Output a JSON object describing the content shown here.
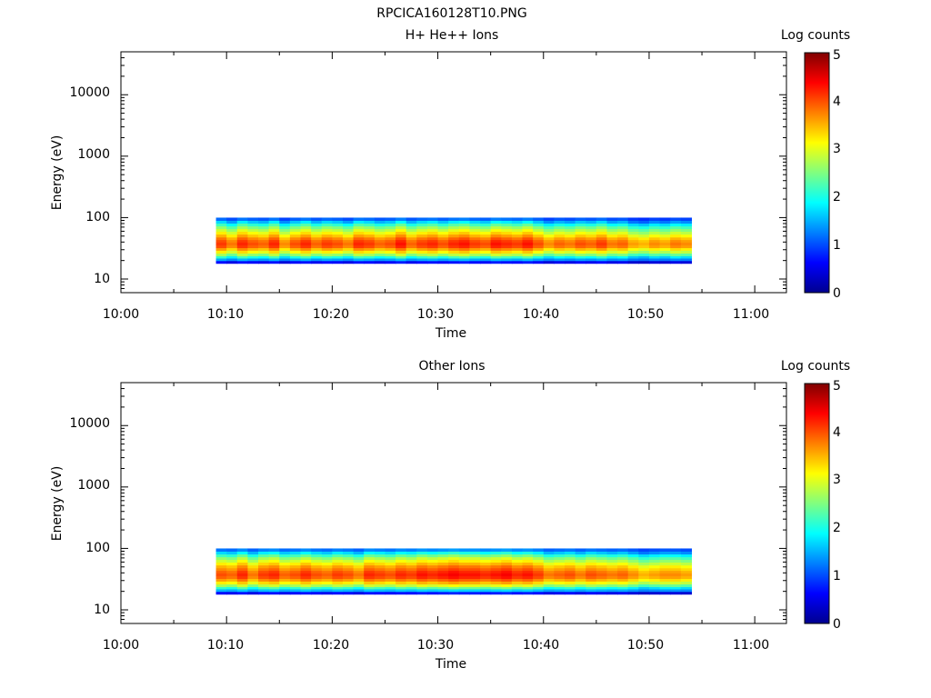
{
  "figure_title": "RPCICA160128T10.PNG",
  "chart_data": [
    {
      "type": "heatmap",
      "title": "H+ He++ Ions",
      "xlabel": "Time",
      "ylabel": "Energy (eV)",
      "y_scale": "log",
      "xlim": [
        "10:00",
        "11:03"
      ],
      "ylim": [
        6,
        50000
      ],
      "x_ticks": [
        "10:00",
        "10:10",
        "10:20",
        "10:30",
        "10:40",
        "10:50",
        "11:00"
      ],
      "y_ticks": [
        "10",
        "100",
        "1000",
        "10000"
      ],
      "colorbar": {
        "label": "Log counts",
        "range": [
          0,
          5
        ],
        "ticks": [
          "0",
          "1",
          "2",
          "3",
          "4",
          "5"
        ],
        "colormap": "jet"
      },
      "time_bins": [
        "10:09",
        "10:10",
        "10:11",
        "10:12",
        "10:13",
        "10:14",
        "10:15",
        "10:16",
        "10:17",
        "10:18",
        "10:19",
        "10:20",
        "10:21",
        "10:22",
        "10:23",
        "10:24",
        "10:25",
        "10:26",
        "10:27",
        "10:28",
        "10:29",
        "10:30",
        "10:31",
        "10:32",
        "10:33",
        "10:34",
        "10:35",
        "10:36",
        "10:37",
        "10:38",
        "10:39",
        "10:40",
        "10:41",
        "10:42",
        "10:43",
        "10:44",
        "10:45",
        "10:46",
        "10:47",
        "10:48",
        "10:49",
        "10:50",
        "10:51",
        "10:52",
        "10:53"
      ],
      "energy_bins_eV": [
        19,
        21,
        23,
        25,
        28,
        31,
        34,
        38,
        42,
        46,
        51,
        57,
        63,
        70,
        77,
        86,
        95
      ],
      "log_counts_profile": [
        0.6,
        1.4,
        2.0,
        2.6,
        3.1,
        3.5,
        3.9,
        4.0,
        3.9,
        3.7,
        3.4,
        3.1,
        2.8,
        2.5,
        2.1,
        1.6,
        1.1
      ],
      "time_modulation": [
        0.1,
        -0.2,
        0.2,
        0.0,
        -0.1,
        0.2,
        -0.3,
        0.0,
        0.2,
        -0.1,
        0.1,
        0.0,
        -0.2,
        0.2,
        0.1,
        -0.1,
        0.0,
        0.3,
        -0.1,
        0.1,
        0.2,
        0.0,
        0.2,
        0.3,
        0.1,
        0.0,
        0.3,
        0.2,
        0.1,
        0.3,
        0.0,
        -0.3,
        -0.1,
        -0.2,
        0.0,
        -0.1,
        0.1,
        -0.2,
        -0.1,
        -0.4,
        -0.5,
        -0.3,
        -0.4,
        -0.2,
        -0.3
      ]
    },
    {
      "type": "heatmap",
      "title": "Other Ions",
      "xlabel": "Time",
      "ylabel": "Energy (eV)",
      "y_scale": "log",
      "xlim": [
        "10:00",
        "11:03"
      ],
      "ylim": [
        6,
        50000
      ],
      "x_ticks": [
        "10:00",
        "10:10",
        "10:20",
        "10:30",
        "10:40",
        "10:50",
        "11:00"
      ],
      "y_ticks": [
        "10",
        "100",
        "1000",
        "10000"
      ],
      "colorbar": {
        "label": "Log counts",
        "range": [
          0,
          5
        ],
        "ticks": [
          "0",
          "1",
          "2",
          "3",
          "4",
          "5"
        ],
        "colormap": "jet"
      },
      "time_bins": [
        "10:09",
        "10:10",
        "10:11",
        "10:12",
        "10:13",
        "10:14",
        "10:15",
        "10:16",
        "10:17",
        "10:18",
        "10:19",
        "10:20",
        "10:21",
        "10:22",
        "10:23",
        "10:24",
        "10:25",
        "10:26",
        "10:27",
        "10:28",
        "10:29",
        "10:30",
        "10:31",
        "10:32",
        "10:33",
        "10:34",
        "10:35",
        "10:36",
        "10:37",
        "10:38",
        "10:39",
        "10:40",
        "10:41",
        "10:42",
        "10:43",
        "10:44",
        "10:45",
        "10:46",
        "10:47",
        "10:48",
        "10:49",
        "10:50",
        "10:51",
        "10:52",
        "10:53"
      ],
      "energy_bins_eV": [
        19,
        21,
        23,
        25,
        28,
        31,
        34,
        38,
        42,
        46,
        51,
        57,
        63,
        70,
        77,
        86,
        95
      ],
      "log_counts_profile": [
        0.6,
        1.5,
        2.1,
        2.7,
        3.2,
        3.6,
        3.9,
        4.0,
        3.9,
        3.7,
        3.5,
        3.2,
        2.9,
        2.6,
        2.2,
        1.7,
        1.2
      ],
      "time_modulation": [
        0.0,
        -0.1,
        0.2,
        -0.2,
        0.1,
        0.2,
        -0.1,
        0.0,
        0.2,
        0.0,
        -0.1,
        0.1,
        0.0,
        -0.2,
        0.2,
        0.1,
        0.0,
        0.2,
        0.1,
        0.3,
        0.2,
        0.3,
        0.4,
        0.3,
        0.3,
        0.2,
        0.3,
        0.4,
        0.2,
        0.3,
        0.1,
        -0.2,
        -0.1,
        0.0,
        -0.2,
        0.0,
        -0.1,
        -0.2,
        -0.1,
        -0.3,
        -0.5,
        -0.4,
        -0.3,
        -0.3,
        -0.4
      ]
    }
  ]
}
